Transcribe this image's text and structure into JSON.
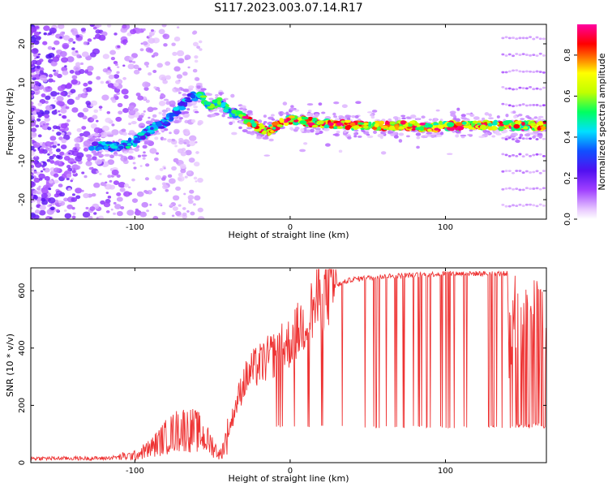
{
  "title": "S117.2023.003.07.14.R17",
  "chart_data": [
    {
      "type": "heatmap",
      "xlabel": "Height of straight line (km)",
      "ylabel": "Frequency (Hz)",
      "xlim": [
        -167,
        165
      ],
      "ylim": [
        -25,
        25
      ],
      "xticks": [
        -100,
        0,
        100
      ],
      "yticks": [
        -20,
        -10,
        0,
        10,
        20
      ],
      "grid": false,
      "colorbar": {
        "label": "Normalized spectral amplitude",
        "range": [
          0,
          0.95
        ],
        "ticks": [
          0.0,
          0.2,
          0.4,
          0.6,
          0.8
        ],
        "colors": [
          "#ffffff",
          "#e8c8ff",
          "#a040ff",
          "#5010f0",
          "#1050ff",
          "#00e0ff",
          "#00ff60",
          "#c0ff00",
          "#ffff00",
          "#ff8000",
          "#ff0000",
          "#ff00a0"
        ]
      },
      "ridge": {
        "x": [
          -125,
          -110,
          -100,
          -90,
          -80,
          -72,
          -65,
          -58,
          -52,
          -45,
          -38,
          -30,
          -22,
          -15,
          -10,
          -5,
          0,
          10,
          20,
          40,
          60,
          80,
          90,
          100,
          120,
          140,
          165
        ],
        "y": [
          -6,
          -6.5,
          -5,
          -2,
          0,
          3,
          6,
          7,
          4,
          5,
          2.5,
          1,
          -1,
          -2.5,
          -1.5,
          0,
          0.5,
          0,
          -0.5,
          -0.8,
          -1,
          -1,
          -1.5,
          -1,
          -1,
          -1,
          -1
        ]
      }
    },
    {
      "type": "line",
      "xlabel": "Height of straight line (km)",
      "ylabel": "SNR (10 * v/v)",
      "xlim": [
        -167,
        165
      ],
      "ylim": [
        0,
        680
      ],
      "xticks": [
        -100,
        0,
        100
      ],
      "yticks": [
        0,
        200,
        400,
        600
      ],
      "grid": false,
      "series": [
        {
          "color": "#ee3333",
          "x": [
            -167,
            -120,
            -100,
            -90,
            -80,
            -70,
            -60,
            -50,
            -45,
            -40,
            -35,
            -30,
            -25,
            -20,
            -10,
            0,
            10,
            20,
            30,
            40,
            60,
            80,
            100,
            120,
            140,
            141,
            165
          ],
          "y": [
            15,
            15,
            25,
            50,
            90,
            120,
            110,
            60,
            25,
            100,
            200,
            280,
            320,
            340,
            380,
            420,
            500,
            580,
            620,
            640,
            650,
            655,
            660,
            660,
            660,
            300,
            300
          ],
          "spikes_down_to": 120,
          "upper_envelope": 660
        }
      ]
    }
  ]
}
